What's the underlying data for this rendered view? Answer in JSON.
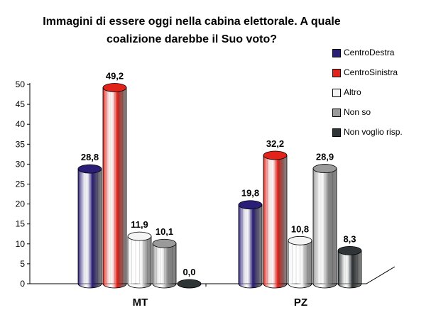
{
  "chart_data": {
    "type": "bar",
    "title_lines": [
      "Immagini di essere oggi nella cabina elettorale. A quale",
      "coalizione darebbe il Suo voto?"
    ],
    "categories": [
      "MT",
      "PZ"
    ],
    "series": [
      {
        "name": "CentroDestra",
        "color": "#2a1f77",
        "values": [
          28.8,
          19.8
        ],
        "labels": [
          "28,8",
          "19,8"
        ]
      },
      {
        "name": "CentroSinistra",
        "color": "#e2231a",
        "values": [
          49.2,
          32.2
        ],
        "labels": [
          "49,2",
          "32,2"
        ]
      },
      {
        "name": "Altro",
        "color": "#f4f4f4",
        "values": [
          11.9,
          10.8
        ],
        "labels": [
          "11,9",
          "10,8"
        ]
      },
      {
        "name": "Non so",
        "color": "#9a9a9a",
        "values": [
          10.1,
          28.9
        ],
        "labels": [
          "10,1",
          "28,9"
        ]
      },
      {
        "name": "Non voglio risp.",
        "color": "#2f3436",
        "values": [
          0.0,
          8.3
        ],
        "labels": [
          "0,0",
          "8,3"
        ]
      }
    ],
    "yticks": [
      "0",
      "5",
      "10",
      "15",
      "20",
      "25",
      "30",
      "35",
      "40",
      "45",
      "50"
    ],
    "ylim": [
      0,
      50
    ],
    "grid": false,
    "legend_position": "right"
  }
}
